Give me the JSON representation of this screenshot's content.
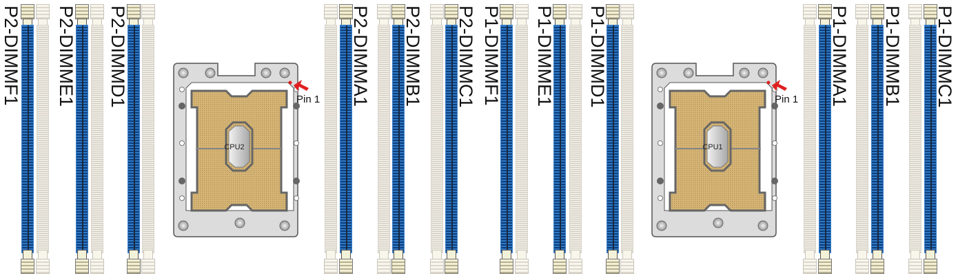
{
  "dimm_labels": {
    "p2_f1": "P2-DIMMF1",
    "p2_e1": "P2-DIMME1",
    "p2_d1": "P2-DIMMD1",
    "p2_a1": "P2-DIMMA1",
    "p2_b1": "P2-DIMMB1",
    "p2_c1": "P2-DIMMC1",
    "p1_f1": "P1-DIMMF1",
    "p1_e1": "P1-DIMME1",
    "p1_d1": "P1-DIMMD1",
    "p1_a1": "P1-DIMMA1",
    "p1_b1": "P1-DIMMB1",
    "p1_c1": "P1-DIMMC1"
  },
  "cpus": {
    "cpu2": "CPU2",
    "cpu1": "CPU1"
  },
  "pin_label": "Pin 1",
  "colors": {
    "blue_slot": "#2f78c4",
    "white_slot": "#efece4",
    "pin_marker": "#e02020",
    "socket_pad": "#d8b878"
  }
}
